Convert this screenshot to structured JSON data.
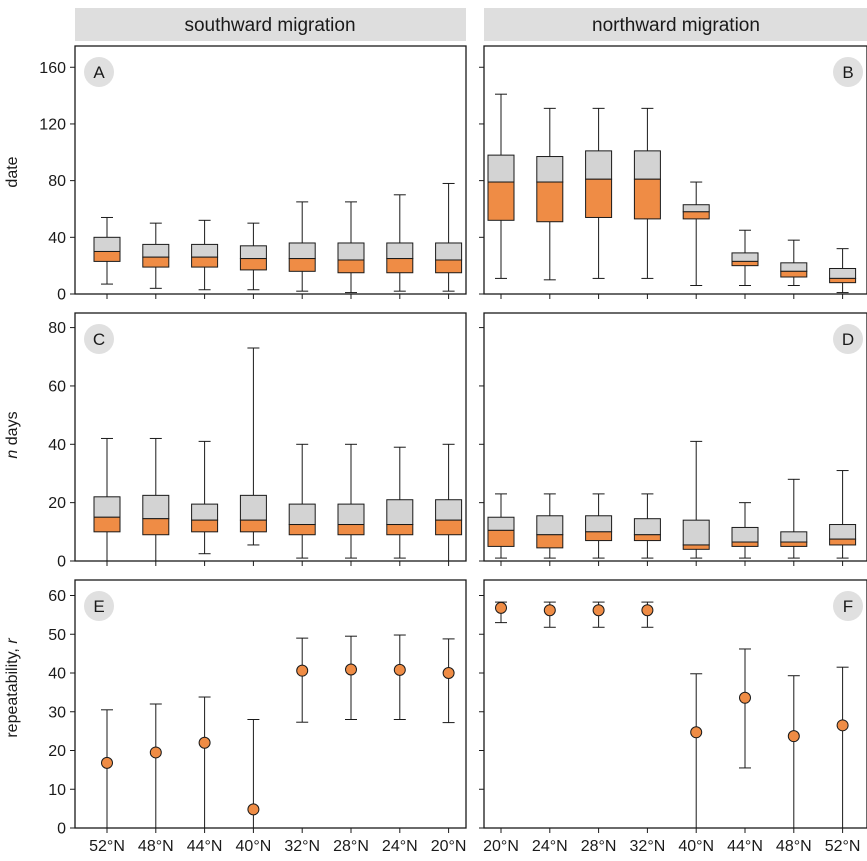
{
  "colors": {
    "strip_bg": "#dedede",
    "box_upper": "#d3d3d3",
    "box_lower": "#ef8c45",
    "point_fill": "#ef8c45",
    "badge_bg": "#e0e0e0",
    "line": "#1a1a1a"
  },
  "strips": {
    "left": "southward migration",
    "right": "northward migration"
  },
  "y_labels": {
    "row1": "date",
    "row2_italic": "n",
    "row2_rest": " days",
    "row3_prefix": "repeatability, ",
    "row3_italic": "r"
  },
  "x_ticks": {
    "left": [
      "52°N",
      "48°N",
      "44°N",
      "40°N",
      "32°N",
      "28°N",
      "24°N",
      "20°N"
    ],
    "right": [
      "20°N",
      "24°N",
      "28°N",
      "32°N",
      "40°N",
      "44°N",
      "48°N",
      "52°N"
    ]
  },
  "chart_data": [
    {
      "panel": "A",
      "type": "box",
      "facet": "southward migration",
      "ylabel": "date",
      "ylim": [
        0,
        175
      ],
      "yticks": [
        0,
        40,
        80,
        120,
        160
      ],
      "categories": [
        "52°N",
        "48°N",
        "44°N",
        "40°N",
        "32°N",
        "28°N",
        "24°N",
        "20°N"
      ],
      "boxes": [
        {
          "min": 7,
          "q1": 23,
          "median": 30,
          "q3": 40,
          "max": 54
        },
        {
          "min": 4,
          "q1": 19,
          "median": 26,
          "q3": 35,
          "max": 50
        },
        {
          "min": 3,
          "q1": 19,
          "median": 26,
          "q3": 35,
          "max": 52
        },
        {
          "min": 3,
          "q1": 17,
          "median": 25,
          "q3": 34,
          "max": 50
        },
        {
          "min": 2,
          "q1": 16,
          "median": 25,
          "q3": 36,
          "max": 65
        },
        {
          "min": 1,
          "q1": 15,
          "median": 24,
          "q3": 36,
          "max": 65
        },
        {
          "min": 2,
          "q1": 15,
          "median": 25,
          "q3": 36,
          "max": 70
        },
        {
          "min": 2,
          "q1": 15,
          "median": 24,
          "q3": 36,
          "max": 78
        }
      ]
    },
    {
      "panel": "B",
      "type": "box",
      "facet": "northward migration",
      "ylabel": "date",
      "ylim": [
        0,
        175
      ],
      "yticks": [
        0,
        40,
        80,
        120,
        160
      ],
      "categories": [
        "20°N",
        "24°N",
        "28°N",
        "32°N",
        "40°N",
        "44°N",
        "48°N",
        "52°N"
      ],
      "boxes": [
        {
          "min": 11,
          "q1": 52,
          "median": 79,
          "q3": 98,
          "max": 141
        },
        {
          "min": 10,
          "q1": 51,
          "median": 79,
          "q3": 97,
          "max": 131
        },
        {
          "min": 11,
          "q1": 54,
          "median": 81,
          "q3": 101,
          "max": 131
        },
        {
          "min": 11,
          "q1": 53,
          "median": 81,
          "q3": 101,
          "max": 131
        },
        {
          "min": 6,
          "q1": 53,
          "median": 58,
          "q3": 63,
          "max": 79
        },
        {
          "min": 6,
          "q1": 20,
          "median": 23,
          "q3": 29,
          "max": 45
        },
        {
          "min": 6,
          "q1": 12,
          "median": 16,
          "q3": 22,
          "max": 38
        },
        {
          "min": 1,
          "q1": 8,
          "median": 11,
          "q3": 18,
          "max": 32
        }
      ]
    },
    {
      "panel": "C",
      "type": "box",
      "facet": "southward migration",
      "ylabel": "n days",
      "ylim": [
        0,
        85
      ],
      "yticks": [
        0,
        20,
        40,
        60,
        80
      ],
      "categories": [
        "52°N",
        "48°N",
        "44°N",
        "40°N",
        "32°N",
        "28°N",
        "24°N",
        "20°N"
      ],
      "boxes": [
        {
          "min": 0,
          "q1": 10,
          "median": 15,
          "q3": 22,
          "max": 42
        },
        {
          "min": 0,
          "q1": 9,
          "median": 14.5,
          "q3": 22.5,
          "max": 42
        },
        {
          "min": 2.5,
          "q1": 10,
          "median": 14,
          "q3": 19.5,
          "max": 41
        },
        {
          "min": 5.5,
          "q1": 10,
          "median": 14,
          "q3": 22.5,
          "max": 73
        },
        {
          "min": 1,
          "q1": 9,
          "median": 12.5,
          "q3": 19.5,
          "max": 40
        },
        {
          "min": 1,
          "q1": 9,
          "median": 12.5,
          "q3": 19.5,
          "max": 40
        },
        {
          "min": 1,
          "q1": 9,
          "median": 12.5,
          "q3": 21,
          "max": 39
        },
        {
          "min": 0,
          "q1": 9,
          "median": 14,
          "q3": 21,
          "max": 40
        }
      ]
    },
    {
      "panel": "D",
      "type": "box",
      "facet": "northward migration",
      "ylabel": "n days",
      "ylim": [
        0,
        85
      ],
      "yticks": [
        0,
        20,
        40,
        60,
        80
      ],
      "categories": [
        "20°N",
        "24°N",
        "28°N",
        "32°N",
        "40°N",
        "44°N",
        "48°N",
        "52°N"
      ],
      "boxes": [
        {
          "min": 1,
          "q1": 5,
          "median": 10.5,
          "q3": 15,
          "max": 23
        },
        {
          "min": 1,
          "q1": 4.5,
          "median": 9,
          "q3": 15.5,
          "max": 23
        },
        {
          "min": 1,
          "q1": 7,
          "median": 10,
          "q3": 15.5,
          "max": 23
        },
        {
          "min": 1,
          "q1": 7,
          "median": 9,
          "q3": 14.5,
          "max": 23
        },
        {
          "min": 1,
          "q1": 4,
          "median": 5.5,
          "q3": 14,
          "max": 41
        },
        {
          "min": 1,
          "q1": 5,
          "median": 6.5,
          "q3": 11.5,
          "max": 20
        },
        {
          "min": 1,
          "q1": 5,
          "median": 6.5,
          "q3": 10,
          "max": 28
        },
        {
          "min": 1,
          "q1": 5.5,
          "median": 7.5,
          "q3": 12.5,
          "max": 31
        }
      ]
    },
    {
      "panel": "E",
      "type": "errorbar",
      "facet": "southward migration",
      "ylabel": "repeatability, r",
      "ylim": [
        0,
        64
      ],
      "yticks": [
        0,
        10,
        20,
        30,
        40,
        50,
        60
      ],
      "categories": [
        "52°N",
        "48°N",
        "44°N",
        "40°N",
        "32°N",
        "28°N",
        "24°N",
        "20°N"
      ],
      "points": [
        {
          "value": 16.8,
          "lower": 0,
          "upper": 30.5
        },
        {
          "value": 19.5,
          "lower": 0,
          "upper": 32
        },
        {
          "value": 22,
          "lower": 0,
          "upper": 33.8
        },
        {
          "value": 4.8,
          "lower": 0,
          "upper": 28
        },
        {
          "value": 40.6,
          "lower": 27.3,
          "upper": 49
        },
        {
          "value": 40.9,
          "lower": 28,
          "upper": 49.5
        },
        {
          "value": 40.8,
          "lower": 28,
          "upper": 49.8
        },
        {
          "value": 40,
          "lower": 27.2,
          "upper": 48.8
        }
      ]
    },
    {
      "panel": "F",
      "type": "errorbar",
      "facet": "northward migration",
      "ylabel": "repeatability, r",
      "ylim": [
        0,
        64
      ],
      "yticks": [
        0,
        10,
        20,
        30,
        40,
        50,
        60
      ],
      "categories": [
        "20°N",
        "24°N",
        "28°N",
        "32°N",
        "40°N",
        "44°N",
        "48°N",
        "52°N"
      ],
      "points": [
        {
          "value": 56.8,
          "lower": 53,
          "upper": 58.3
        },
        {
          "value": 56.2,
          "lower": 51.8,
          "upper": 58.3
        },
        {
          "value": 56.2,
          "lower": 51.8,
          "upper": 58.3
        },
        {
          "value": 56.2,
          "lower": 51.8,
          "upper": 58.3
        },
        {
          "value": 24.7,
          "lower": 0,
          "upper": 39.8
        },
        {
          "value": 33.6,
          "lower": 15.5,
          "upper": 46.2
        },
        {
          "value": 23.7,
          "lower": 0,
          "upper": 39.3
        },
        {
          "value": 26.5,
          "lower": 0,
          "upper": 41.5
        }
      ]
    }
  ]
}
